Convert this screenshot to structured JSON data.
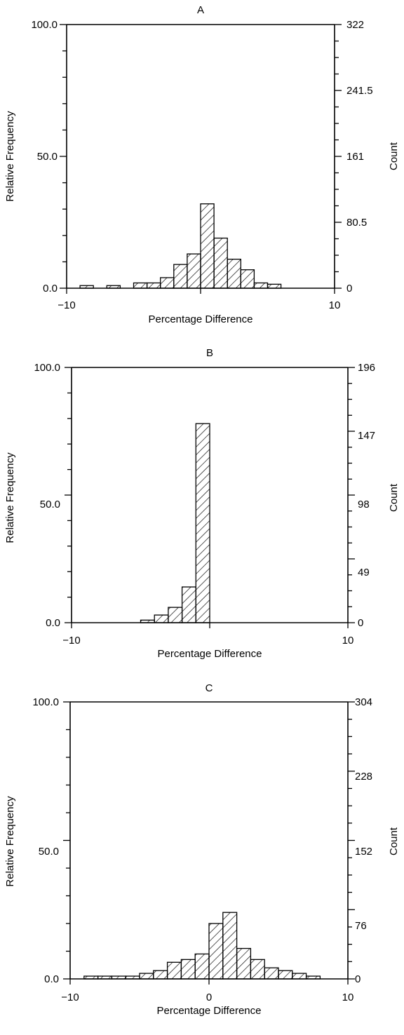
{
  "chart_data": [
    {
      "type": "bar",
      "title": "A",
      "xlabel": "Percentage Difference",
      "ylabel": "Relative Frequency",
      "y2label": "Count",
      "xlim": [
        -10,
        10
      ],
      "ylim": [
        0,
        100
      ],
      "x_ticks": [
        "−10",
        "0",
        "10"
      ],
      "y_ticks": [
        "0.0",
        "50.0",
        "100.0"
      ],
      "y2_ticks": [
        "0",
        "80.5",
        "161",
        "241.5",
        "322"
      ],
      "bin_width": 1,
      "bins": [
        {
          "x": -9,
          "value": 1
        },
        {
          "x": -8,
          "value": 0
        },
        {
          "x": -7,
          "value": 1
        },
        {
          "x": -5,
          "value": 2
        },
        {
          "x": -4,
          "value": 2
        },
        {
          "x": -3,
          "value": 4
        },
        {
          "x": -2,
          "value": 9
        },
        {
          "x": -1,
          "value": 13
        },
        {
          "x": 0,
          "value": 32
        },
        {
          "x": 1,
          "value": 19
        },
        {
          "x": 2,
          "value": 11
        },
        {
          "x": 3,
          "value": 7
        },
        {
          "x": 4,
          "value": 2
        },
        {
          "x": 5,
          "value": 1.5
        }
      ]
    },
    {
      "type": "bar",
      "title": "B",
      "xlabel": "Percentage Difference",
      "ylabel": "Relative Frequency",
      "y2label": "Count",
      "xlim": [
        -10,
        10
      ],
      "ylim": [
        0,
        100
      ],
      "x_ticks": [
        "−10",
        "0",
        "10"
      ],
      "y_ticks": [
        "0.0",
        "50.0",
        "100.0"
      ],
      "y2_ticks": [
        "0",
        "49",
        "98",
        "147",
        "196"
      ],
      "bin_width": 1,
      "bins": [
        {
          "x": -5,
          "value": 1
        },
        {
          "x": -4,
          "value": 3
        },
        {
          "x": -3,
          "value": 6
        },
        {
          "x": -2,
          "value": 14
        },
        {
          "x": -1,
          "value": 78
        }
      ]
    },
    {
      "type": "bar",
      "title": "C",
      "xlabel": "Percentage Difference",
      "ylabel": "Relative Frequency",
      "y2label": "Count",
      "xlim": [
        -10,
        10
      ],
      "ylim": [
        0,
        100
      ],
      "x_ticks": [
        "−10",
        "0",
        "10"
      ],
      "y_ticks": [
        "0.0",
        "50.0",
        "100.0"
      ],
      "y2_ticks": [
        "0",
        "76",
        "152",
        "228",
        "304"
      ],
      "bin_width": 1,
      "bins": [
        {
          "x": -9,
          "value": 1
        },
        {
          "x": -8,
          "value": 1
        },
        {
          "x": -7,
          "value": 1
        },
        {
          "x": -6,
          "value": 1
        },
        {
          "x": -5,
          "value": 2
        },
        {
          "x": -4,
          "value": 3
        },
        {
          "x": -3,
          "value": 6
        },
        {
          "x": -2,
          "value": 7
        },
        {
          "x": -1,
          "value": 9
        },
        {
          "x": 0,
          "value": 20
        },
        {
          "x": 1,
          "value": 24
        },
        {
          "x": 2,
          "value": 11
        },
        {
          "x": 3,
          "value": 7
        },
        {
          "x": 4,
          "value": 4
        },
        {
          "x": 5,
          "value": 3
        },
        {
          "x": 6,
          "value": 2
        },
        {
          "x": 7,
          "value": 1
        },
        {
          "x": 8,
          "value": 0
        }
      ]
    }
  ]
}
